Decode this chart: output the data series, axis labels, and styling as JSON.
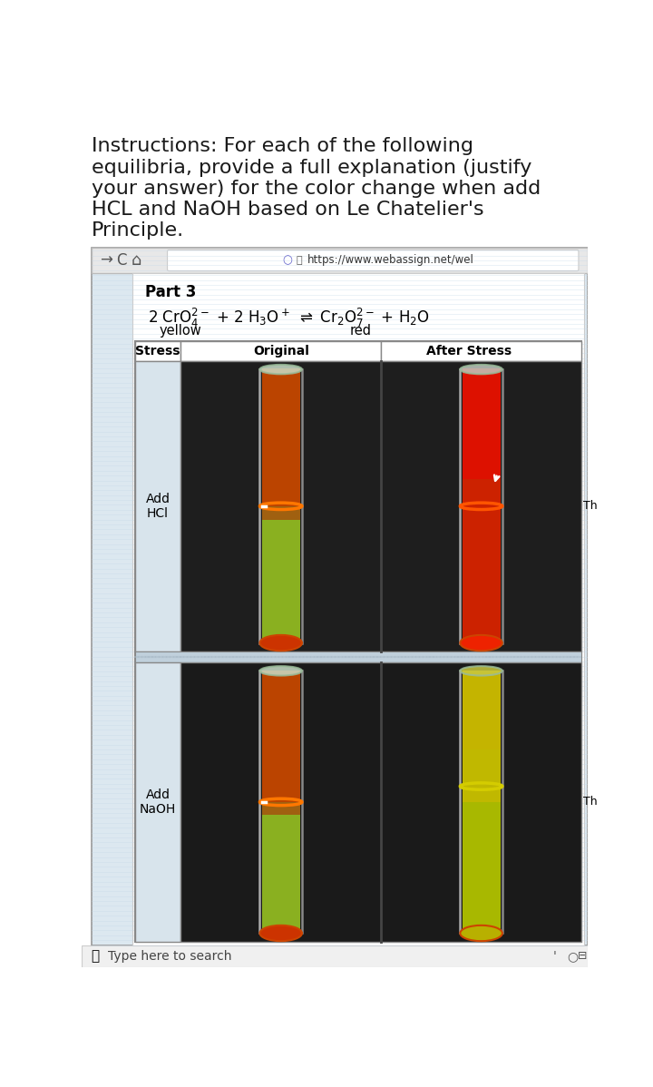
{
  "title_line1": "Instructions: For each of the following",
  "title_line2": "equilibria, provide a full explanation (justify",
  "title_line3": "your answer) for the color change when add",
  "title_line4": "HCL and NaOH based on Le Chatelier's",
  "title_line5": "Principle.",
  "title_fontsize": 16,
  "title_color": "#1a1a1a",
  "bg_color": "#ffffff",
  "url_text": "https://www.webassign.net/wel",
  "part3_text": "Part 3",
  "yellow_label": "yellow",
  "red_label": "red",
  "stress_col": "Stress",
  "original_col": "Original",
  "after_stress_col": "After Stress",
  "add_hcl_label": "Add\nHCl",
  "add_naoh_label": "Add\nNaOH",
  "th_text": "Th",
  "type_search_text": "Type here to search",
  "browser_bg": "#dce8f0",
  "panel_bg": "#ffffff",
  "toolbar_bg": "#e8e8e8",
  "stress_cell_bg": "#d8e4ec",
  "photo_bg": "#1e1e1e",
  "table_border": "#888888",
  "taskbar_bg": "#f0f0f0"
}
